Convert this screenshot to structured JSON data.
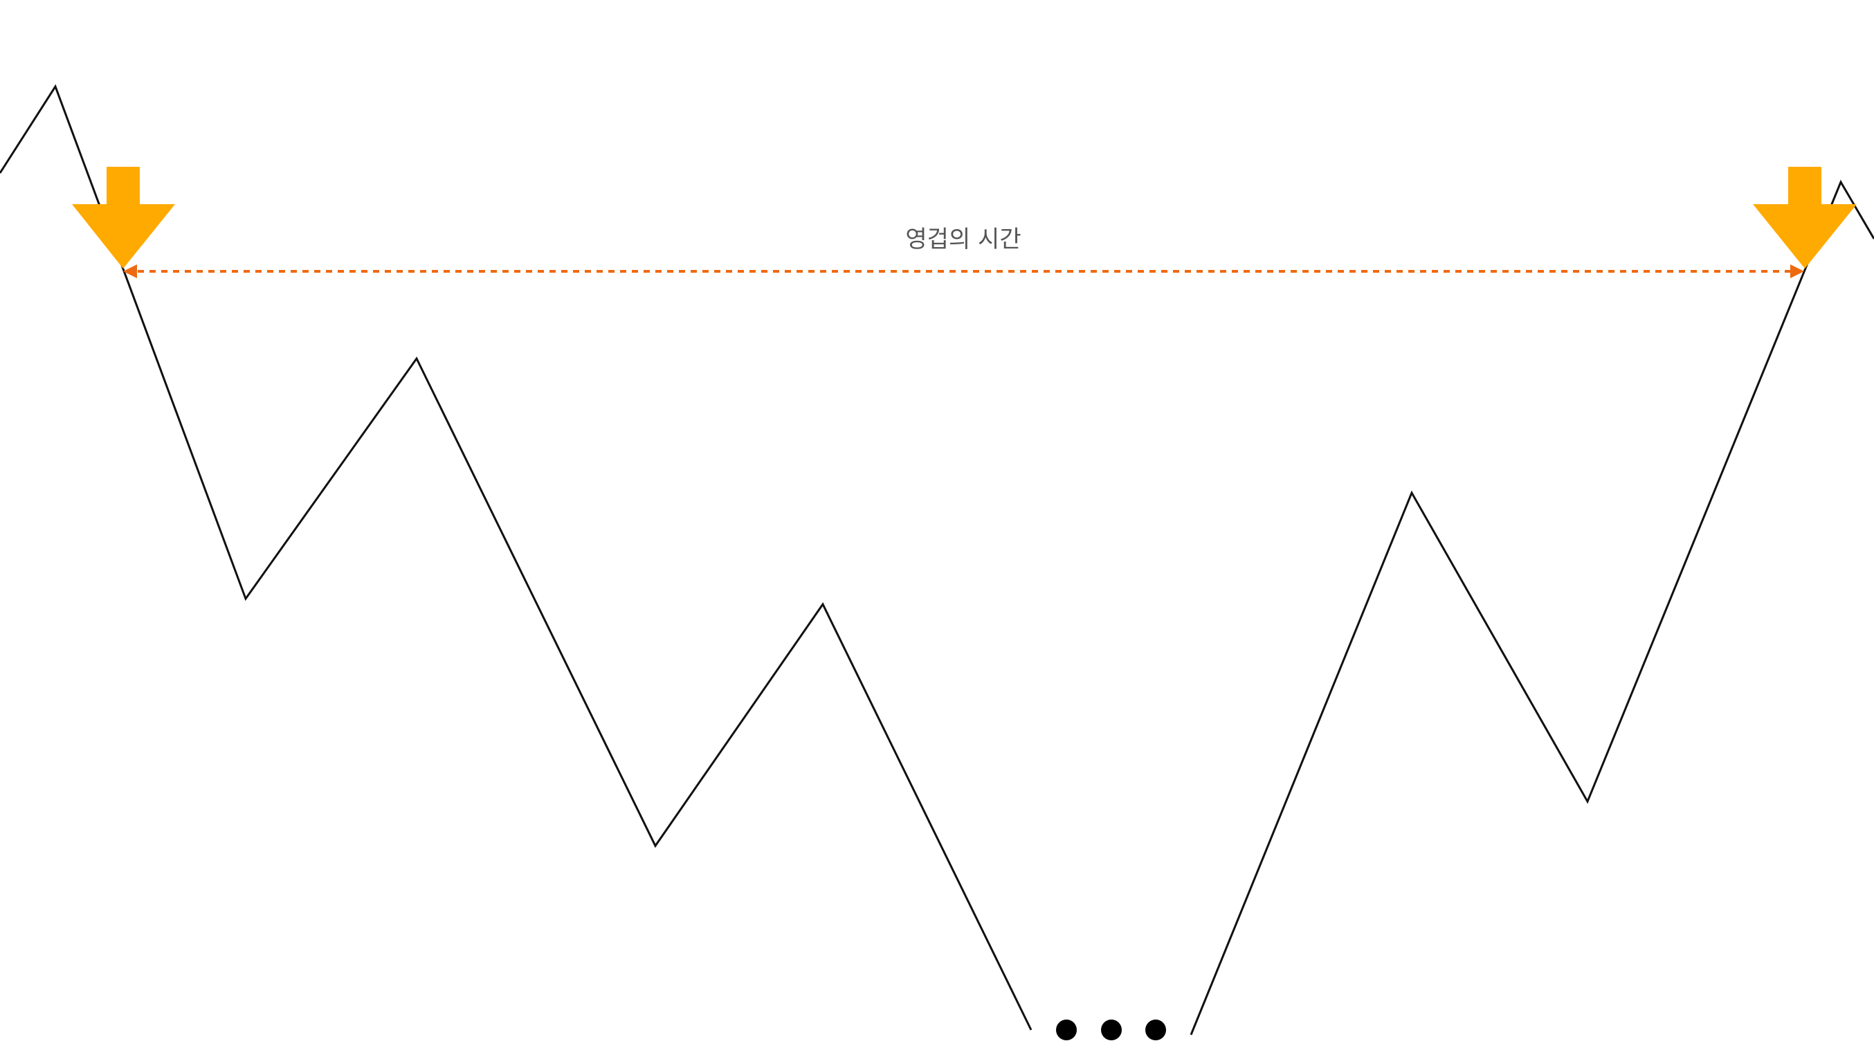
{
  "diagram": {
    "span_label": "영겁의 시간",
    "colors": {
      "background": "#ffffff",
      "line": "#111111",
      "marker_arrow": "#FFAA00",
      "span_arrow": "#EE6A10",
      "label_text": "#555555",
      "dots": "#000000"
    },
    "icons": {
      "start_marker": "down-arrow-icon",
      "end_marker": "down-arrow-icon",
      "continuation": "ellipsis-dots"
    }
  }
}
